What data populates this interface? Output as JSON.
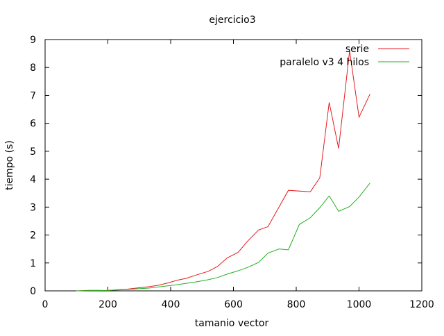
{
  "chart_data": {
    "type": "line",
    "title": "ejercicio3",
    "xlabel": "tamanio vector",
    "ylabel": "tiempo (s)",
    "xlim": [
      0,
      1200
    ],
    "ylim": [
      0,
      9
    ],
    "xticks": [
      0,
      200,
      400,
      600,
      800,
      1000,
      1200
    ],
    "yticks": [
      0,
      1,
      2,
      3,
      4,
      5,
      6,
      7,
      8,
      9
    ],
    "grid": false,
    "legend_position": "top-right",
    "series": [
      {
        "name": "serie",
        "color": "#e41a1c",
        "points": [
          [
            100,
            0.0
          ],
          [
            120,
            0.01
          ],
          [
            140,
            0.02
          ],
          [
            170,
            0.02
          ],
          [
            200,
            0.01
          ],
          [
            230,
            0.04
          ],
          [
            260,
            0.06
          ],
          [
            290,
            0.1
          ],
          [
            330,
            0.15
          ],
          [
            360,
            0.2
          ],
          [
            390,
            0.28
          ],
          [
            420,
            0.38
          ],
          [
            450,
            0.45
          ],
          [
            485,
            0.58
          ],
          [
            520,
            0.7
          ],
          [
            550,
            0.88
          ],
          [
            580,
            1.18
          ],
          [
            615,
            1.38
          ],
          [
            645,
            1.78
          ],
          [
            680,
            2.18
          ],
          [
            710,
            2.3
          ],
          [
            745,
            3.0
          ],
          [
            775,
            3.6
          ],
          [
            845,
            3.55
          ],
          [
            875,
            4.05
          ],
          [
            905,
            6.75
          ],
          [
            935,
            5.1
          ],
          [
            970,
            8.6
          ],
          [
            1000,
            6.22
          ],
          [
            1035,
            7.05
          ]
        ]
      },
      {
        "name": "paralelo v3 4 hilos",
        "color": "#20b020",
        "points": [
          [
            100,
            0.0
          ],
          [
            140,
            0.01
          ],
          [
            170,
            0.01
          ],
          [
            200,
            0.02
          ],
          [
            230,
            0.03
          ],
          [
            260,
            0.05
          ],
          [
            290,
            0.07
          ],
          [
            330,
            0.1
          ],
          [
            360,
            0.14
          ],
          [
            390,
            0.18
          ],
          [
            420,
            0.22
          ],
          [
            450,
            0.27
          ],
          [
            485,
            0.33
          ],
          [
            520,
            0.4
          ],
          [
            550,
            0.48
          ],
          [
            580,
            0.6
          ],
          [
            615,
            0.72
          ],
          [
            645,
            0.84
          ],
          [
            680,
            1.02
          ],
          [
            710,
            1.35
          ],
          [
            745,
            1.5
          ],
          [
            775,
            1.47
          ],
          [
            810,
            2.38
          ],
          [
            845,
            2.62
          ],
          [
            875,
            2.98
          ],
          [
            905,
            3.4
          ],
          [
            935,
            2.85
          ],
          [
            970,
            3.02
          ],
          [
            1000,
            3.36
          ],
          [
            1035,
            3.86
          ]
        ]
      }
    ]
  }
}
